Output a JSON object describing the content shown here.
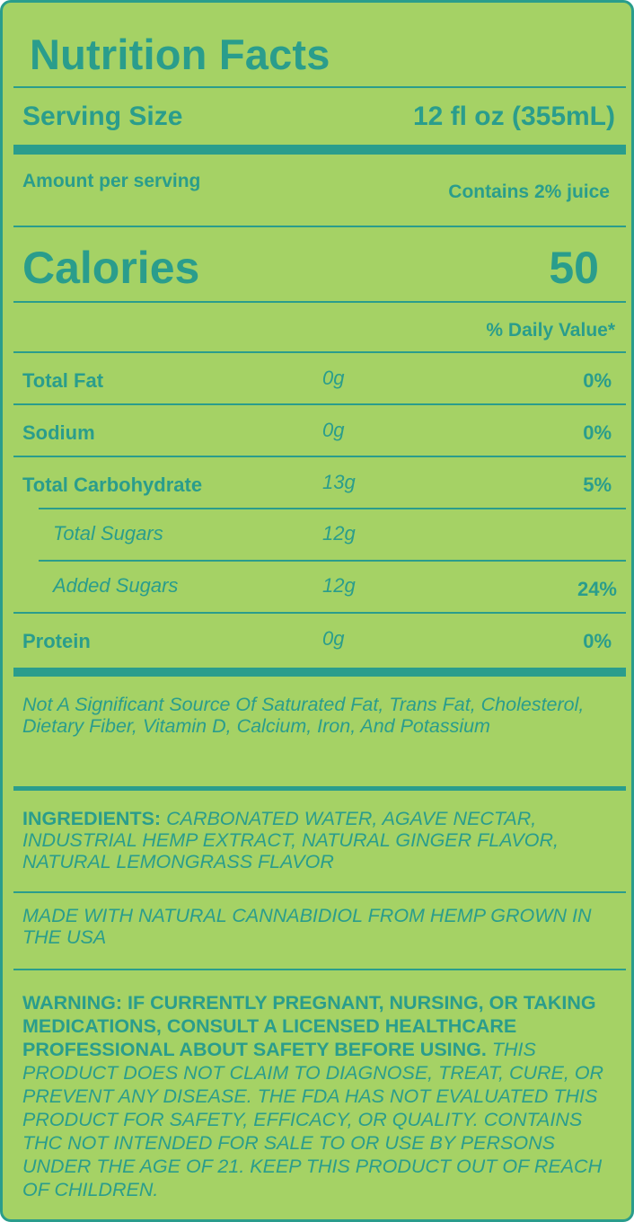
{
  "title": "Nutrition Facts",
  "serving": {
    "label": "Serving Size",
    "value": "12 fl oz (355mL)"
  },
  "amount_per_serving": "Amount per serving",
  "juice_note": "Contains 2% juice",
  "calories": {
    "label": "Calories",
    "value": "50"
  },
  "daily_value_header": "% Daily Value*",
  "nutrients": [
    {
      "name": "Total Fat",
      "amount": "0g",
      "dv": "0%"
    },
    {
      "name": "Sodium",
      "amount": "0g",
      "dv": "0%"
    },
    {
      "name": "Total Carbohydrate",
      "amount": "13g",
      "dv": "5%"
    },
    {
      "name": "Total Sugars",
      "amount": "12g",
      "dv": ""
    },
    {
      "name": "Added Sugars",
      "amount": "12g",
      "dv": "24%"
    },
    {
      "name": "Protein",
      "amount": "0g",
      "dv": "0%"
    }
  ],
  "not_significant": "Not A Significant Source Of Saturated Fat, Trans Fat, Cholesterol, Dietary Fiber, Vitamin D, Calcium, Iron, And Potassium",
  "ingredients": {
    "label": "INGREDIENTS:",
    "text": "CARBONATED WATER, AGAVE NECTAR, INDUSTRIAL HEMP EXTRACT, NATURAL GINGER FLAVOR, NATURAL LEMONGRASS FLAVOR"
  },
  "made_with": "MADE WITH NATURAL CANNABIDIOL FROM HEMP GROWN IN THE USA",
  "warning": {
    "bold": "WARNING: IF CURRENTLY PREGNANT, NURSING, OR TAKING MEDICATIONS, CONSULT A LICENSED HEALTHCARE PROFESSIONAL ABOUT SAFETY BEFORE USING.",
    "text": "THIS PRODUCT DOES NOT CLAIM TO DIAGNOSE, TREAT, CURE, OR PREVENT ANY DISEASE. THE FDA HAS NOT EVALUATED THIS PRODUCT FOR SAFETY, EFFICACY, OR QUALITY. CONTAINS THC NOT INTENDED FOR SALE TO OR USE BY PERSONS UNDER THE AGE OF 21. KEEP THIS PRODUCT OUT OF REACH OF CHILDREN."
  },
  "colors": {
    "background": "#a5d265",
    "ink": "#2a9d8c"
  }
}
